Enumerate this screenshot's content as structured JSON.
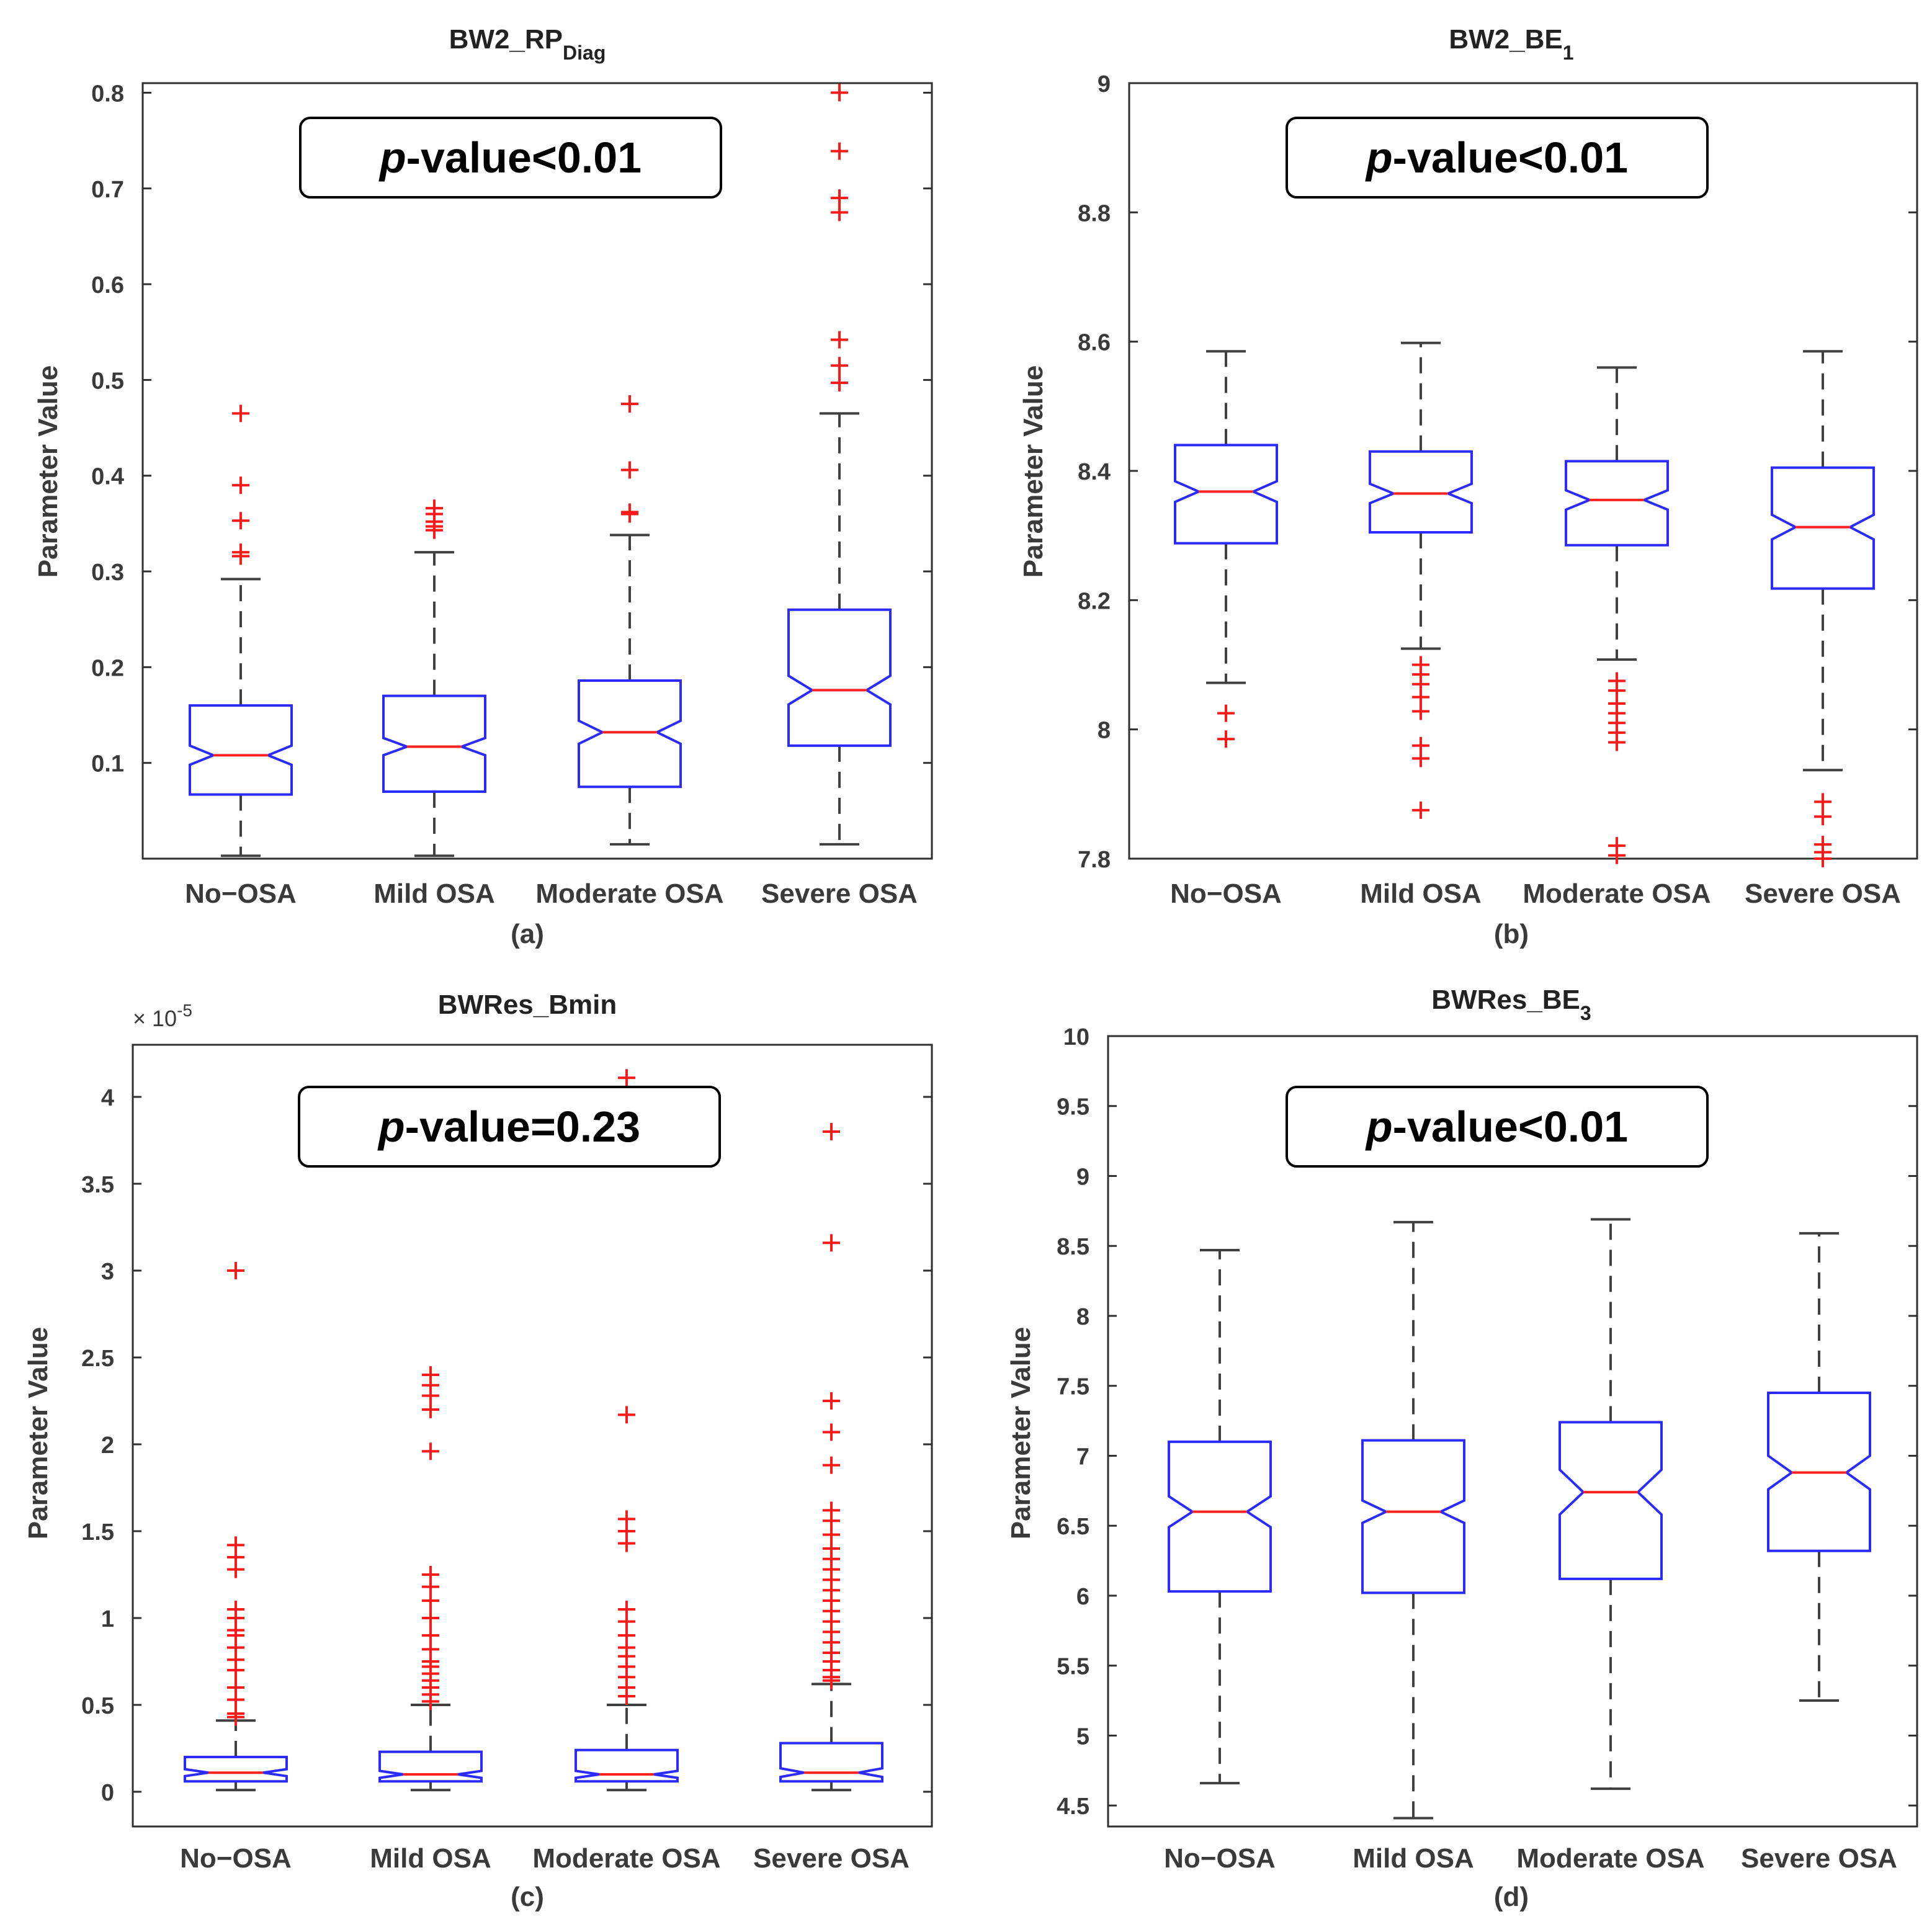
{
  "colors": {
    "box": "#2b2bff",
    "median": "#ff2020",
    "outlier": "#ff1a1a",
    "whisker": "#404040",
    "axis": "#303030",
    "text": "#3a3a3a"
  },
  "chart_data": [
    {
      "type": "box",
      "panel_label": "(a)",
      "title": "BW2_RP",
      "title_sub": "Diag",
      "ylabel": "Parameter Value",
      "ylim": [
        0.0,
        0.81
      ],
      "yticks": [
        0.1,
        0.2,
        0.3,
        0.4,
        0.5,
        0.6,
        0.7,
        0.8
      ],
      "ytick_labels": [
        "0.1",
        "0.2",
        "0.3",
        "0.4",
        "0.5",
        "0.6",
        "0.7",
        "0.8"
      ],
      "annotation": "p-value<0.01",
      "annotation_italic": "p",
      "annotation_rest": "-value<0.01",
      "categories": [
        "No−OSA",
        "Mild OSA",
        "Moderate OSA",
        "Severe OSA"
      ],
      "boxes": [
        {
          "whisker_low": 0.003,
          "q1": 0.067,
          "median": 0.108,
          "q3": 0.16,
          "whisker_high": 0.292,
          "notch_low": 0.098,
          "notch_high": 0.118,
          "outliers": [
            0.316,
            0.32,
            0.353,
            0.39,
            0.465
          ]
        },
        {
          "whisker_low": 0.003,
          "q1": 0.07,
          "median": 0.117,
          "q3": 0.17,
          "whisker_high": 0.32,
          "notch_low": 0.108,
          "notch_high": 0.126,
          "outliers": [
            0.343,
            0.347,
            0.352,
            0.36,
            0.366
          ]
        },
        {
          "whisker_low": 0.015,
          "q1": 0.075,
          "median": 0.132,
          "q3": 0.186,
          "whisker_high": 0.338,
          "notch_low": 0.12,
          "notch_high": 0.144,
          "outliers": [
            0.36,
            0.362,
            0.406,
            0.475
          ]
        },
        {
          "whisker_low": 0.015,
          "q1": 0.118,
          "median": 0.176,
          "q3": 0.26,
          "whisker_high": 0.465,
          "notch_low": 0.161,
          "notch_high": 0.191,
          "outliers": [
            0.497,
            0.515,
            0.542,
            0.675,
            0.69,
            0.739,
            0.8
          ]
        }
      ]
    },
    {
      "type": "box",
      "panel_label": "(b)",
      "title": "BW2_BE",
      "title_sub": "1",
      "ylabel": "Parameter Value",
      "ylim": [
        7.8,
        9.0
      ],
      "yticks": [
        7.8,
        8.0,
        8.2,
        8.4,
        8.6,
        8.8,
        9.0
      ],
      "ytick_labels": [
        "7.8",
        "8",
        "8.2",
        "8.4",
        "8.6",
        "8.8",
        "9"
      ],
      "annotation": "p-value<0.01",
      "annotation_italic": "p",
      "annotation_rest": "-value<0.01",
      "categories": [
        "No−OSA",
        "Mild OSA",
        "Moderate OSA",
        "Severe OSA"
      ],
      "boxes": [
        {
          "whisker_low": 8.072,
          "q1": 8.288,
          "median": 8.368,
          "q3": 8.44,
          "whisker_high": 8.585,
          "notch_low": 8.352,
          "notch_high": 8.384,
          "outliers": [
            8.025,
            7.985
          ]
        },
        {
          "whisker_low": 8.125,
          "q1": 8.305,
          "median": 8.365,
          "q3": 8.43,
          "whisker_high": 8.598,
          "notch_low": 8.35,
          "notch_high": 8.38,
          "outliers": [
            8.1,
            8.085,
            8.07,
            8.05,
            8.028,
            7.975,
            7.955,
            7.875
          ]
        },
        {
          "whisker_low": 8.108,
          "q1": 8.285,
          "median": 8.355,
          "q3": 8.415,
          "whisker_high": 8.56,
          "notch_low": 8.34,
          "notch_high": 8.37,
          "outliers": [
            8.075,
            8.06,
            8.04,
            8.025,
            8.01,
            7.995,
            7.98,
            7.82,
            7.805
          ]
        },
        {
          "whisker_low": 7.937,
          "q1": 8.218,
          "median": 8.313,
          "q3": 8.405,
          "whisker_high": 8.585,
          "notch_low": 8.294,
          "notch_high": 8.332,
          "outliers": [
            7.888,
            7.865,
            7.822,
            7.81,
            7.8
          ]
        }
      ]
    },
    {
      "type": "box",
      "panel_label": "(c)",
      "title": "BWRes_Bmin",
      "title_sub": "",
      "ylabel": "Parameter Value",
      "exponent_label": "× 10",
      "exponent_power": "-5",
      "ylim": [
        -0.2,
        4.3
      ],
      "yticks": [
        0,
        0.5,
        1,
        1.5,
        2,
        2.5,
        3,
        3.5,
        4
      ],
      "ytick_labels": [
        "0",
        "0.5",
        "1",
        "1.5",
        "2",
        "2.5",
        "3",
        "3.5",
        "4"
      ],
      "annotation": "p-value=0.23",
      "annotation_italic": "p",
      "annotation_rest": "-value=0.23",
      "categories": [
        "No−OSA",
        "Mild OSA",
        "Moderate OSA",
        "Severe OSA"
      ],
      "boxes": [
        {
          "whisker_low": 0.01,
          "q1": 0.06,
          "median": 0.11,
          "q3": 0.2,
          "whisker_high": 0.41,
          "notch_low": 0.09,
          "notch_high": 0.13,
          "outliers": [
            0.43,
            0.45,
            0.53,
            0.6,
            0.7,
            0.76,
            0.83,
            0.9,
            0.93,
            1.0,
            1.05,
            1.28,
            1.35,
            1.42,
            3.0
          ]
        },
        {
          "whisker_low": 0.01,
          "q1": 0.06,
          "median": 0.1,
          "q3": 0.23,
          "whisker_high": 0.5,
          "notch_low": 0.08,
          "notch_high": 0.12,
          "outliers": [
            0.52,
            0.56,
            0.6,
            0.64,
            0.68,
            0.72,
            0.75,
            0.82,
            0.9,
            1.0,
            1.1,
            1.18,
            1.25,
            1.96,
            2.2,
            2.28,
            2.34,
            2.4
          ]
        },
        {
          "whisker_low": 0.01,
          "q1": 0.06,
          "median": 0.1,
          "q3": 0.24,
          "whisker_high": 0.5,
          "notch_low": 0.08,
          "notch_high": 0.12,
          "outliers": [
            0.55,
            0.6,
            0.66,
            0.72,
            0.78,
            0.83,
            0.9,
            0.98,
            1.05,
            1.43,
            1.5,
            1.57,
            2.17,
            4.11
          ]
        },
        {
          "whisker_low": 0.01,
          "q1": 0.06,
          "median": 0.11,
          "q3": 0.28,
          "whisker_high": 0.62,
          "notch_low": 0.085,
          "notch_high": 0.135,
          "outliers": [
            0.64,
            0.66,
            0.7,
            0.75,
            0.8,
            0.86,
            0.92,
            0.98,
            1.04,
            1.1,
            1.16,
            1.22,
            1.28,
            1.34,
            1.4,
            1.48,
            1.56,
            1.62,
            1.88,
            2.07,
            2.25,
            3.16,
            3.8
          ]
        }
      ]
    },
    {
      "type": "box",
      "panel_label": "(d)",
      "title": "BWRes_BE",
      "title_sub": "3",
      "ylabel": "Parameter Value",
      "ylim": [
        4.35,
        10.0
      ],
      "yticks": [
        4.5,
        5,
        5.5,
        6,
        6.5,
        7,
        7.5,
        8,
        8.5,
        9,
        9.5,
        10
      ],
      "ytick_labels": [
        "4.5",
        "5",
        "5.5",
        "6",
        "6.5",
        "7",
        "7.5",
        "8",
        "8.5",
        "9",
        "9.5",
        "10"
      ],
      "annotation": "p-value<0.01",
      "annotation_italic": "p",
      "annotation_rest": "-value<0.01",
      "categories": [
        "No−OSA",
        "Mild OSA",
        "Moderate OSA",
        "Severe OSA"
      ],
      "boxes": [
        {
          "whisker_low": 4.66,
          "q1": 6.03,
          "median": 6.6,
          "q3": 7.1,
          "whisker_high": 8.47,
          "notch_low": 6.49,
          "notch_high": 6.71,
          "outliers": []
        },
        {
          "whisker_low": 4.41,
          "q1": 6.02,
          "median": 6.6,
          "q3": 7.11,
          "whisker_high": 8.67,
          "notch_low": 6.52,
          "notch_high": 6.68,
          "outliers": []
        },
        {
          "whisker_low": 4.62,
          "q1": 6.12,
          "median": 6.74,
          "q3": 7.24,
          "whisker_high": 8.69,
          "notch_low": 6.58,
          "notch_high": 6.9,
          "outliers": []
        },
        {
          "whisker_low": 5.25,
          "q1": 6.32,
          "median": 6.88,
          "q3": 7.45,
          "whisker_high": 8.59,
          "notch_low": 6.76,
          "notch_high": 7.0,
          "outliers": []
        }
      ]
    }
  ]
}
